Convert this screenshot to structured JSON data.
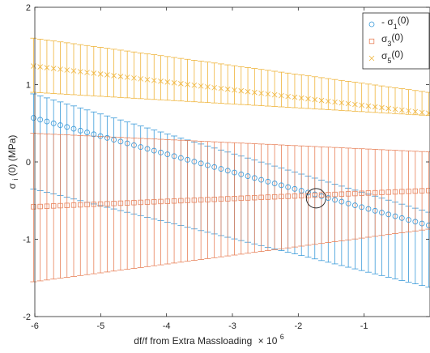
{
  "chart_data": {
    "type": "scatter",
    "xlim": [
      -6,
      0
    ],
    "ylim": [
      -2,
      2
    ],
    "xticks": [
      "-6",
      "-5",
      "-4",
      "-3",
      "-2",
      "-1"
    ],
    "yticks": [
      "-2",
      "-1",
      "0",
      "1",
      "2"
    ],
    "xlabel": "df/f from Extra Massloading",
    "xlabel_multiplier": "× 10",
    "xlabel_exponent": "6",
    "ylabel": "σ",
    "ylabel_sub": "i",
    "ylabel_rest": "(0) (MPa)",
    "grid": false,
    "legend_position": "top-right",
    "n_points": 60,
    "series": [
      {
        "legend_pre": "- σ",
        "legend_sub": "1",
        "legend_post": "(0)",
        "marker": "circle",
        "color": "#3a9ad9",
        "y_start": 0.57,
        "y_end": -0.82,
        "lower_start": -0.35,
        "lower_end": -1.62,
        "upper_start": 0.88,
        "upper_end": -0.65
      },
      {
        "legend_pre": "σ",
        "legend_sub": "3",
        "legend_post": "(0)",
        "marker": "square",
        "color": "#e8825a",
        "y_start": -0.58,
        "y_end": -0.37,
        "lower_start": -1.55,
        "lower_end": -0.87,
        "upper_start": 0.37,
        "upper_end": 0.13
      },
      {
        "legend_pre": "σ",
        "legend_sub": "5",
        "legend_post": "(0)",
        "marker": "cross",
        "color": "#efb43a",
        "y_start": 1.24,
        "y_end": 0.63,
        "lower_start": 0.9,
        "lower_end": 0.6,
        "upper_start": 1.6,
        "upper_end": 0.9
      }
    ],
    "annotation": {
      "type": "circle",
      "x": -1.73,
      "y": -0.47
    }
  }
}
